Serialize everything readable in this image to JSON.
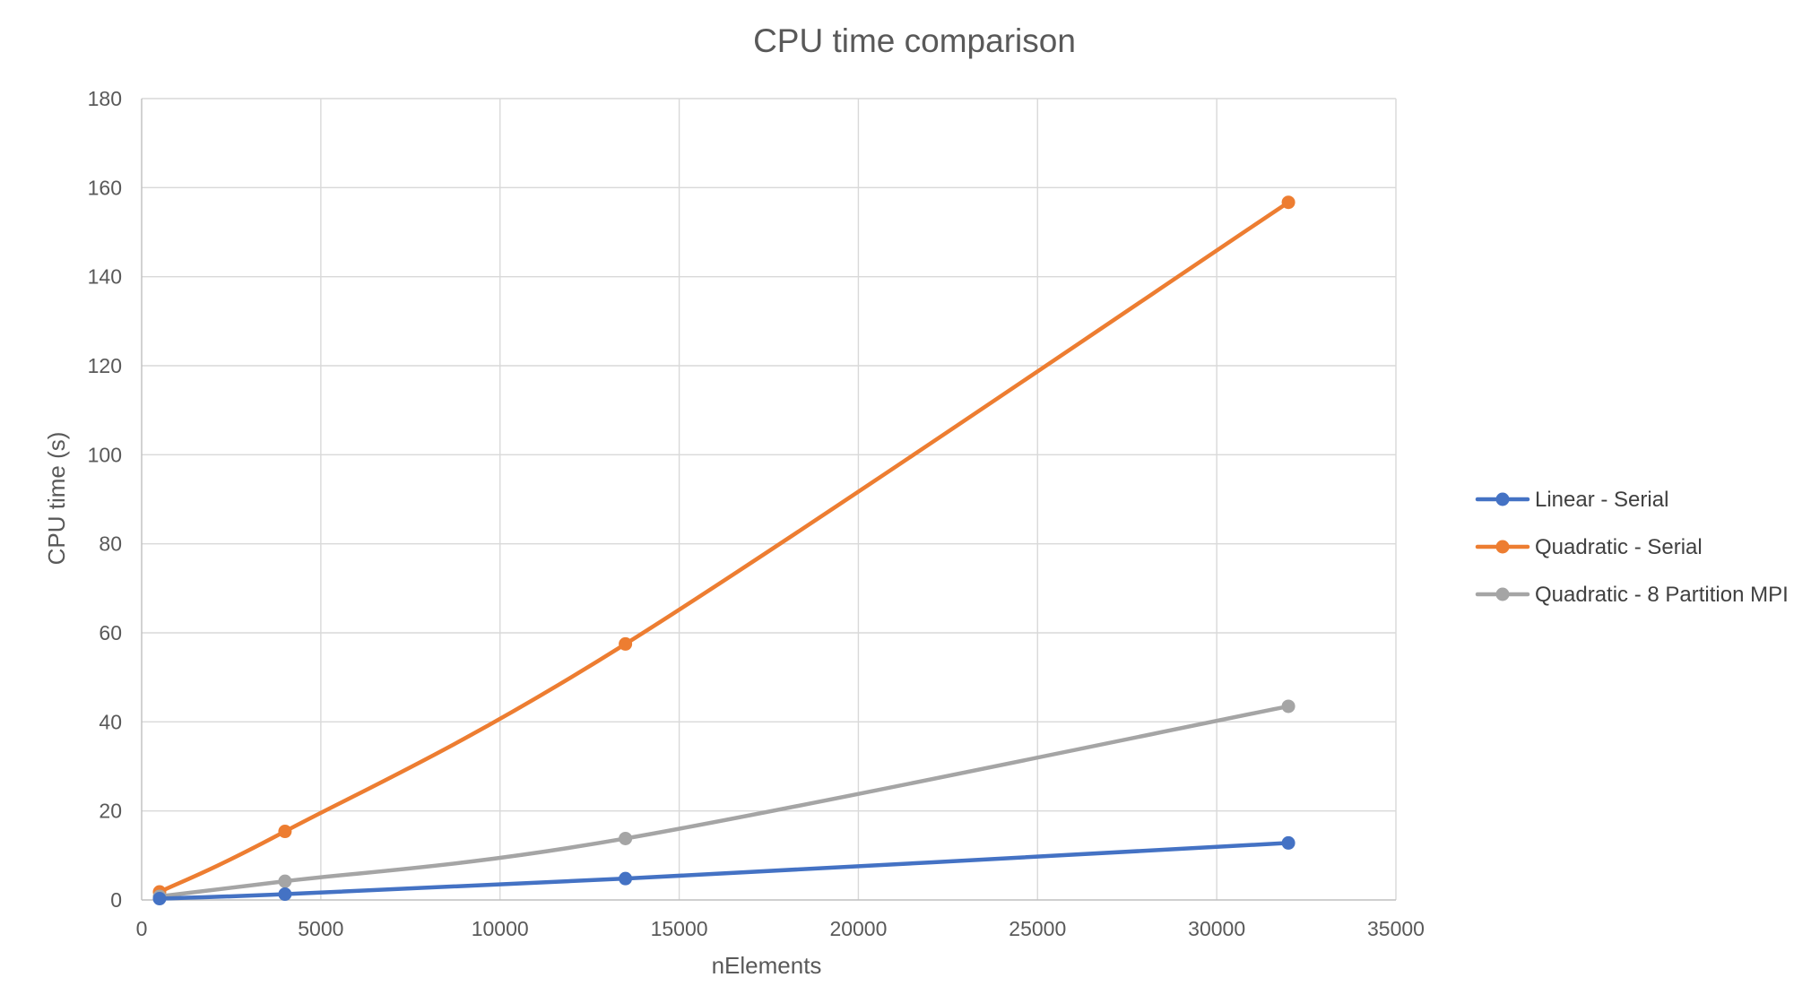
{
  "chart_data": {
    "type": "line",
    "title": "CPU time comparison",
    "xlabel": "nElements",
    "ylabel": "CPU time (s)",
    "xlim": [
      0,
      35000
    ],
    "ylim": [
      0,
      180
    ],
    "x_ticks": [
      0,
      5000,
      10000,
      15000,
      20000,
      25000,
      30000,
      35000
    ],
    "y_ticks": [
      0,
      20,
      40,
      60,
      80,
      100,
      120,
      140,
      160,
      180
    ],
    "grid": true,
    "smooth": true,
    "legend_position": "right",
    "x": [
      500,
      4000,
      13500,
      32000
    ],
    "series": [
      {
        "name": "Linear - Serial",
        "color": "#4472c4",
        "values": [
          0.3,
          1.3,
          4.8,
          12.8
        ]
      },
      {
        "name": "Quadratic - Serial",
        "color": "#ed7d31",
        "values": [
          1.8,
          15.4,
          57.5,
          156.7
        ]
      },
      {
        "name": "Quadratic - 8 Partition MPI",
        "color": "#a5a5a5",
        "values": [
          0.8,
          4.2,
          13.8,
          43.5
        ]
      }
    ]
  }
}
